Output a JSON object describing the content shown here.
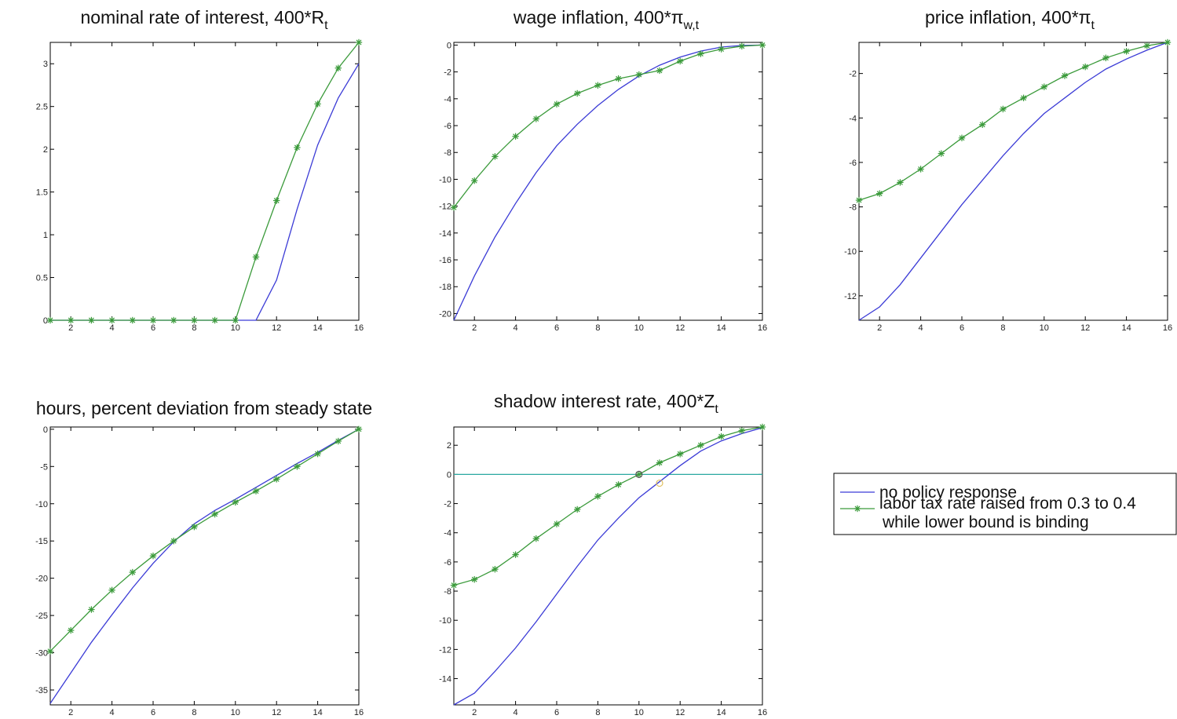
{
  "colors": {
    "baseline": "#3b3bd6",
    "policy": "#3a9a3a",
    "zero_line": "#2aa8a0",
    "axes": "#000000"
  },
  "legend": {
    "baseline_label": "no policy response",
    "policy_label_line1": "labor tax rate raised from 0.3 to 0.4",
    "policy_label_line2": "while lower bound is binding"
  },
  "chart_data": [
    {
      "type": "line",
      "id": "nominal",
      "title": "nominal rate of interest, 400*R",
      "title_sub": "t",
      "xlabel": "",
      "ylabel": "",
      "xlim": [
        1,
        16
      ],
      "ylim": [
        0,
        3.25
      ],
      "xticks": [
        2,
        4,
        6,
        8,
        10,
        12,
        14,
        16
      ],
      "yticks": [
        0,
        0.5,
        1,
        1.5,
        2,
        2.5,
        3
      ],
      "ytick_labels": [
        "0",
        "0.5",
        "1",
        "1.5",
        "2",
        "2.5",
        "3"
      ],
      "x": [
        1,
        2,
        3,
        4,
        5,
        6,
        7,
        8,
        9,
        10,
        11,
        12,
        13,
        14,
        15,
        16
      ],
      "series": [
        {
          "values": [
            0,
            0,
            0,
            0,
            0,
            0,
            0,
            0,
            0,
            0,
            0,
            0.47,
            1.3,
            2.05,
            2.6,
            3.0
          ]
        },
        {
          "values": [
            0,
            0,
            0,
            0,
            0,
            0,
            0,
            0,
            0,
            0,
            0.74,
            1.4,
            2.02,
            2.53,
            2.95,
            3.25
          ],
          "markers": true
        }
      ],
      "hline": null,
      "circles": []
    },
    {
      "type": "line",
      "id": "wage",
      "title": "wage inflation, 400*π",
      "title_sub": "w,t",
      "xlabel": "",
      "ylabel": "",
      "xlim": [
        1,
        16
      ],
      "ylim": [
        -20.5,
        0.2
      ],
      "xticks": [
        2,
        4,
        6,
        8,
        10,
        12,
        14,
        16
      ],
      "yticks": [
        0,
        -2,
        -4,
        -6,
        -8,
        -10,
        -12,
        -14,
        -16,
        -18,
        -20
      ],
      "ytick_labels": [
        "0",
        "-2",
        "-4",
        "-6",
        "-8",
        "-10",
        "-12",
        "-14",
        "-16",
        "-18",
        "-20"
      ],
      "x": [
        1,
        2,
        3,
        4,
        5,
        6,
        7,
        8,
        9,
        10,
        11,
        12,
        13,
        14,
        15,
        16
      ],
      "series": [
        {
          "values": [
            -20.5,
            -17.2,
            -14.3,
            -11.8,
            -9.5,
            -7.5,
            -5.9,
            -4.5,
            -3.3,
            -2.3,
            -1.5,
            -0.9,
            -0.45,
            -0.15,
            -0.03,
            0.0
          ]
        },
        {
          "values": [
            -12.1,
            -10.1,
            -8.3,
            -6.8,
            -5.5,
            -4.4,
            -3.6,
            -3.0,
            -2.5,
            -2.2,
            -1.9,
            -1.2,
            -0.65,
            -0.3,
            -0.08,
            0.0
          ],
          "markers": true
        }
      ],
      "hline": null,
      "circles": []
    },
    {
      "type": "line",
      "id": "price",
      "title": "price inflation, 400*π",
      "title_sub": "t",
      "xlabel": "",
      "ylabel": "",
      "xlim": [
        1,
        16
      ],
      "ylim": [
        -13.1,
        -0.6
      ],
      "xticks": [
        2,
        4,
        6,
        8,
        10,
        12,
        14,
        16
      ],
      "yticks": [
        -2,
        -4,
        -6,
        -8,
        -10,
        -12
      ],
      "ytick_labels": [
        "-2",
        "-4",
        "-6",
        "-8",
        "-10",
        "-12"
      ],
      "x": [
        1,
        2,
        3,
        4,
        5,
        6,
        7,
        8,
        9,
        10,
        11,
        12,
        13,
        14,
        15,
        16
      ],
      "series": [
        {
          "values": [
            -13.1,
            -12.5,
            -11.5,
            -10.3,
            -9.1,
            -7.9,
            -6.8,
            -5.7,
            -4.7,
            -3.8,
            -3.1,
            -2.4,
            -1.8,
            -1.35,
            -0.95,
            -0.6
          ]
        },
        {
          "values": [
            -7.7,
            -7.4,
            -6.9,
            -6.3,
            -5.6,
            -4.9,
            -4.3,
            -3.6,
            -3.1,
            -2.6,
            -2.1,
            -1.7,
            -1.3,
            -1.0,
            -0.75,
            -0.6
          ],
          "markers": true
        }
      ],
      "hline": null,
      "circles": []
    },
    {
      "type": "line",
      "id": "hours",
      "title": "hours, percent deviation from steady state",
      "title_sub": "",
      "xlabel": "",
      "ylabel": "",
      "xlim": [
        1,
        16
      ],
      "ylim": [
        -37,
        0.3
      ],
      "xticks": [
        2,
        4,
        6,
        8,
        10,
        12,
        14,
        16
      ],
      "yticks": [
        0,
        -5,
        -10,
        -15,
        -20,
        -25,
        -30,
        -35
      ],
      "ytick_labels": [
        "0",
        "-5",
        "-10",
        "-15",
        "-20",
        "-25",
        "-30",
        "-35"
      ],
      "x": [
        1,
        2,
        3,
        4,
        5,
        6,
        7,
        8,
        9,
        10,
        11,
        12,
        13,
        14,
        15,
        16
      ],
      "series": [
        {
          "values": [
            -36.8,
            -32.7,
            -28.6,
            -24.9,
            -21.3,
            -18.0,
            -15.1,
            -12.7,
            -10.9,
            -9.4,
            -7.8,
            -6.2,
            -4.6,
            -3.1,
            -1.5,
            0.0
          ]
        },
        {
          "values": [
            -29.8,
            -27.0,
            -24.2,
            -21.6,
            -19.2,
            -17.0,
            -15.0,
            -13.1,
            -11.4,
            -9.8,
            -8.3,
            -6.7,
            -5.0,
            -3.3,
            -1.6,
            0.0
          ],
          "markers": true
        }
      ],
      "hline": null,
      "circles": []
    },
    {
      "type": "line",
      "id": "shadow",
      "title": "shadow interest rate, 400*Z",
      "title_sub": "t",
      "xlabel": "",
      "ylabel": "",
      "xlim": [
        1,
        16
      ],
      "ylim": [
        -15.8,
        3.25
      ],
      "xticks": [
        2,
        4,
        6,
        8,
        10,
        12,
        14,
        16
      ],
      "yticks": [
        2,
        0,
        -2,
        -4,
        -6,
        -8,
        -10,
        -12,
        -14
      ],
      "ytick_labels": [
        "2",
        "0",
        "-2",
        "-4",
        "-6",
        "-8",
        "-10",
        "-12",
        "-14"
      ],
      "x": [
        1,
        2,
        3,
        4,
        5,
        6,
        7,
        8,
        9,
        10,
        11,
        12,
        13,
        14,
        15,
        16
      ],
      "series": [
        {
          "values": [
            -15.8,
            -15.0,
            -13.5,
            -11.9,
            -10.1,
            -8.2,
            -6.3,
            -4.5,
            -3.0,
            -1.6,
            -0.5,
            0.6,
            1.6,
            2.3,
            2.8,
            3.2
          ]
        },
        {
          "values": [
            -7.6,
            -7.2,
            -6.5,
            -5.5,
            -4.4,
            -3.4,
            -2.4,
            -1.5,
            -0.7,
            0.0,
            0.8,
            1.4,
            2.0,
            2.6,
            3.0,
            3.25
          ],
          "markers": true
        }
      ],
      "hline": 0,
      "circles": [
        {
          "x": 10,
          "y": 0,
          "color": "#555555"
        },
        {
          "x": 11,
          "y": -0.6,
          "color": "#e0c060"
        }
      ]
    }
  ]
}
